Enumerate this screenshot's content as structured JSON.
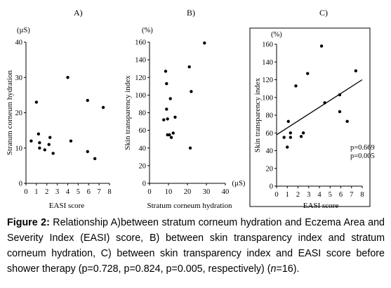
{
  "chart_data": [
    {
      "type": "scatter",
      "panel_label": "A)",
      "unit_label": "(µS)",
      "xlabel": "EASI score",
      "ylabel": "Stratum corneum hydration",
      "xlim": [
        0,
        8
      ],
      "ylim": [
        0,
        40
      ],
      "x_ticks": [
        "0",
        "1",
        "2",
        "3",
        "4",
        "5",
        "6",
        "7",
        "8"
      ],
      "y_ticks": [
        "0",
        "10",
        "20",
        "30",
        "40"
      ],
      "points": [
        {
          "x": 0.5,
          "y": 12
        },
        {
          "x": 1.0,
          "y": 23
        },
        {
          "x": 1.2,
          "y": 14
        },
        {
          "x": 1.3,
          "y": 11.5
        },
        {
          "x": 1.3,
          "y": 10
        },
        {
          "x": 1.8,
          "y": 9.5
        },
        {
          "x": 2.2,
          "y": 11
        },
        {
          "x": 2.3,
          "y": 13
        },
        {
          "x": 2.6,
          "y": 8.5
        },
        {
          "x": 4.0,
          "y": 30
        },
        {
          "x": 4.3,
          "y": 12
        },
        {
          "x": 5.9,
          "y": 23.5
        },
        {
          "x": 5.9,
          "y": 9
        },
        {
          "x": 6.6,
          "y": 7
        },
        {
          "x": 7.4,
          "y": 21.5
        }
      ]
    },
    {
      "type": "scatter",
      "panel_label": "B)",
      "unit_label": "(%)",
      "x_unit_label": "(µS)",
      "xlabel": "Stratum corneum hydration",
      "ylabel": "Skin transparency index",
      "xlim": [
        0,
        40
      ],
      "ylim": [
        0,
        160
      ],
      "x_ticks": [
        "0",
        "10",
        "20",
        "30",
        "40"
      ],
      "y_ticks": [
        "0",
        "20",
        "40",
        "60",
        "80",
        "100",
        "120",
        "140",
        "160"
      ],
      "points": [
        {
          "x": 7.5,
          "y": 72
        },
        {
          "x": 8.5,
          "y": 127
        },
        {
          "x": 9,
          "y": 113
        },
        {
          "x": 9,
          "y": 84
        },
        {
          "x": 9.5,
          "y": 73
        },
        {
          "x": 9.5,
          "y": 55
        },
        {
          "x": 10.5,
          "y": 55
        },
        {
          "x": 11,
          "y": 96
        },
        {
          "x": 11.5,
          "y": 52
        },
        {
          "x": 12.5,
          "y": 57
        },
        {
          "x": 13.5,
          "y": 75
        },
        {
          "x": 21,
          "y": 132
        },
        {
          "x": 22,
          "y": 104
        },
        {
          "x": 21.5,
          "y": 40
        },
        {
          "x": 29,
          "y": 159
        }
      ]
    },
    {
      "type": "scatter",
      "panel_label": "C)",
      "unit_label": "(%)",
      "xlabel": "EASI score",
      "ylabel": "Skin transparency index",
      "xlim": [
        0,
        8
      ],
      "ylim": [
        0,
        160
      ],
      "x_ticks": [
        "0",
        "1",
        "2",
        "3",
        "4",
        "5",
        "6",
        "7",
        "8"
      ],
      "y_ticks": [
        "0",
        "20",
        "40",
        "60",
        "80",
        "100",
        "120",
        "140",
        "160"
      ],
      "annotations": [
        "p=0.669",
        "p=0.005"
      ],
      "trendline": {
        "x": [
          0,
          8
        ],
        "y": [
          58,
          120
        ]
      },
      "points": [
        {
          "x": 0.7,
          "y": 55
        },
        {
          "x": 1.0,
          "y": 44
        },
        {
          "x": 1.1,
          "y": 73
        },
        {
          "x": 1.3,
          "y": 55
        },
        {
          "x": 1.3,
          "y": 60
        },
        {
          "x": 1.8,
          "y": 113
        },
        {
          "x": 2.3,
          "y": 56
        },
        {
          "x": 2.5,
          "y": 60
        },
        {
          "x": 2.9,
          "y": 127
        },
        {
          "x": 4.2,
          "y": 158
        },
        {
          "x": 4.5,
          "y": 94
        },
        {
          "x": 5.9,
          "y": 103
        },
        {
          "x": 5.9,
          "y": 84
        },
        {
          "x": 6.6,
          "y": 73
        },
        {
          "x": 7.4,
          "y": 130
        }
      ]
    }
  ],
  "caption": {
    "label": "Figure 2:",
    "text": " Relationship A)between stratum corneum hydration and Eczema Area and Severity Index (EASI) score, B) between skin transparency index and stratum corneum hydration, C) between skin transparency index and EASI score before shower therapy (p=0.728, p=0.824, p=0.005, respectively) (",
    "n_symbol": "n",
    "tail": "=16)."
  }
}
